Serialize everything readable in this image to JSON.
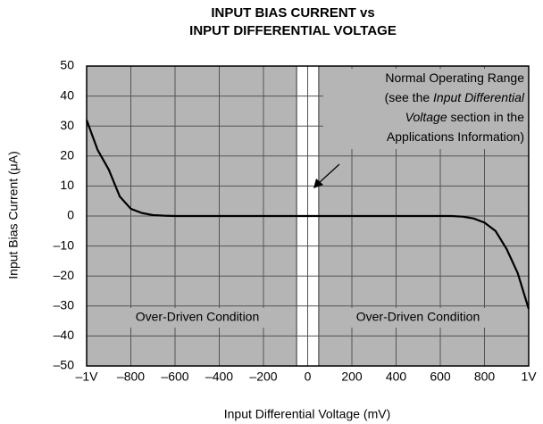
{
  "chart_data": {
    "type": "line",
    "title": [
      "INPUT BIAS CURRENT vs",
      "INPUT DIFFERENTIAL VOLTAGE"
    ],
    "x_label": "Input Differential Voltage (mV)",
    "y_label": "Input Bias Current (μA)",
    "x": [
      -1000,
      -950,
      -900,
      -850,
      -800,
      -750,
      -700,
      -650,
      -600,
      0,
      600,
      650,
      700,
      750,
      800,
      850,
      900,
      950,
      1000
    ],
    "series": [
      {
        "name": "Input Bias Current",
        "color": "#000000",
        "values": [
          32,
          22,
          15.5,
          6.5,
          2.4,
          1,
          0.3,
          0.1,
          0,
          0,
          0,
          0,
          -0.2,
          -0.8,
          -2.2,
          -5,
          -11,
          -19,
          -31
        ]
      }
    ],
    "xlim": [
      -1000,
      1000
    ],
    "ylim": [
      -50,
      50
    ],
    "xticks": [
      {
        "value": -1000,
        "label": "–1V"
      },
      {
        "value": -800,
        "label": "–800"
      },
      {
        "value": -600,
        "label": "–600"
      },
      {
        "value": -400,
        "label": "–400"
      },
      {
        "value": -200,
        "label": "–200"
      },
      0,
      200,
      400,
      600,
      800,
      {
        "value": 1000,
        "label": "1V"
      }
    ],
    "yticks": [
      {
        "value": -50,
        "label": "–50"
      },
      {
        "value": -40,
        "label": "–40"
      },
      {
        "value": -30,
        "label": "–30"
      },
      {
        "value": -20,
        "label": "–20"
      },
      {
        "value": -10,
        "label": "–10"
      },
      0,
      10,
      20,
      30,
      40,
      50
    ],
    "grid": true,
    "normal_range": [
      -50,
      50
    ],
    "annotation": [
      [
        {
          "text": "Normal Operating Range",
          "italic": false
        }
      ],
      [
        {
          "text": "(see the ",
          "italic": false
        },
        {
          "text": "Input Differential",
          "italic": true
        }
      ],
      [
        {
          "text": "Voltage",
          "italic": true
        },
        {
          "text": " section in the",
          "italic": false
        }
      ],
      [
        {
          "text": "Applications Information)",
          "italic": false
        }
      ]
    ],
    "region_labels": [
      "Over-Driven Condition",
      "Over-Driven Condition"
    ]
  }
}
